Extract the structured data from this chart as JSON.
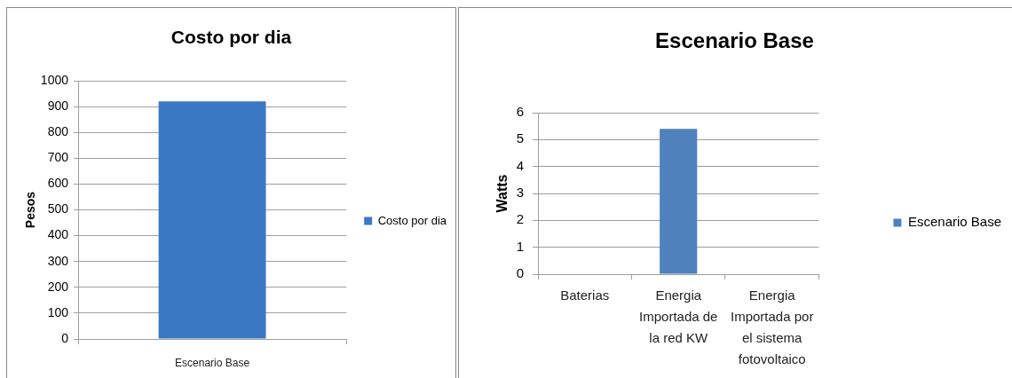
{
  "chart_data": [
    {
      "type": "bar",
      "title": "Costo por dia",
      "ylabel": "Pesos",
      "categories": [
        "Escenario Base"
      ],
      "series": [
        {
          "name": "Costo por dia",
          "color": "#3b78c3",
          "values": [
            920
          ]
        }
      ],
      "ylim": [
        0,
        1000
      ],
      "yticks": [
        0,
        100,
        200,
        300,
        400,
        500,
        600,
        700,
        800,
        900,
        1000
      ],
      "grid": "y",
      "legend": "right"
    },
    {
      "type": "bar",
      "title": "Escenario Base",
      "ylabel": "Watts",
      "categories": [
        "Baterias",
        "Energia Importada de la red KW",
        "Energia Importada por el sistema fotovoltaico"
      ],
      "series": [
        {
          "name": "Escenario Base",
          "color": "#4f81bd",
          "values": [
            0,
            5.4,
            0
          ]
        }
      ],
      "ylim": [
        0,
        6
      ],
      "yticks": [
        0,
        1,
        2,
        3,
        4,
        5,
        6
      ],
      "grid": "y",
      "legend": "right"
    }
  ]
}
